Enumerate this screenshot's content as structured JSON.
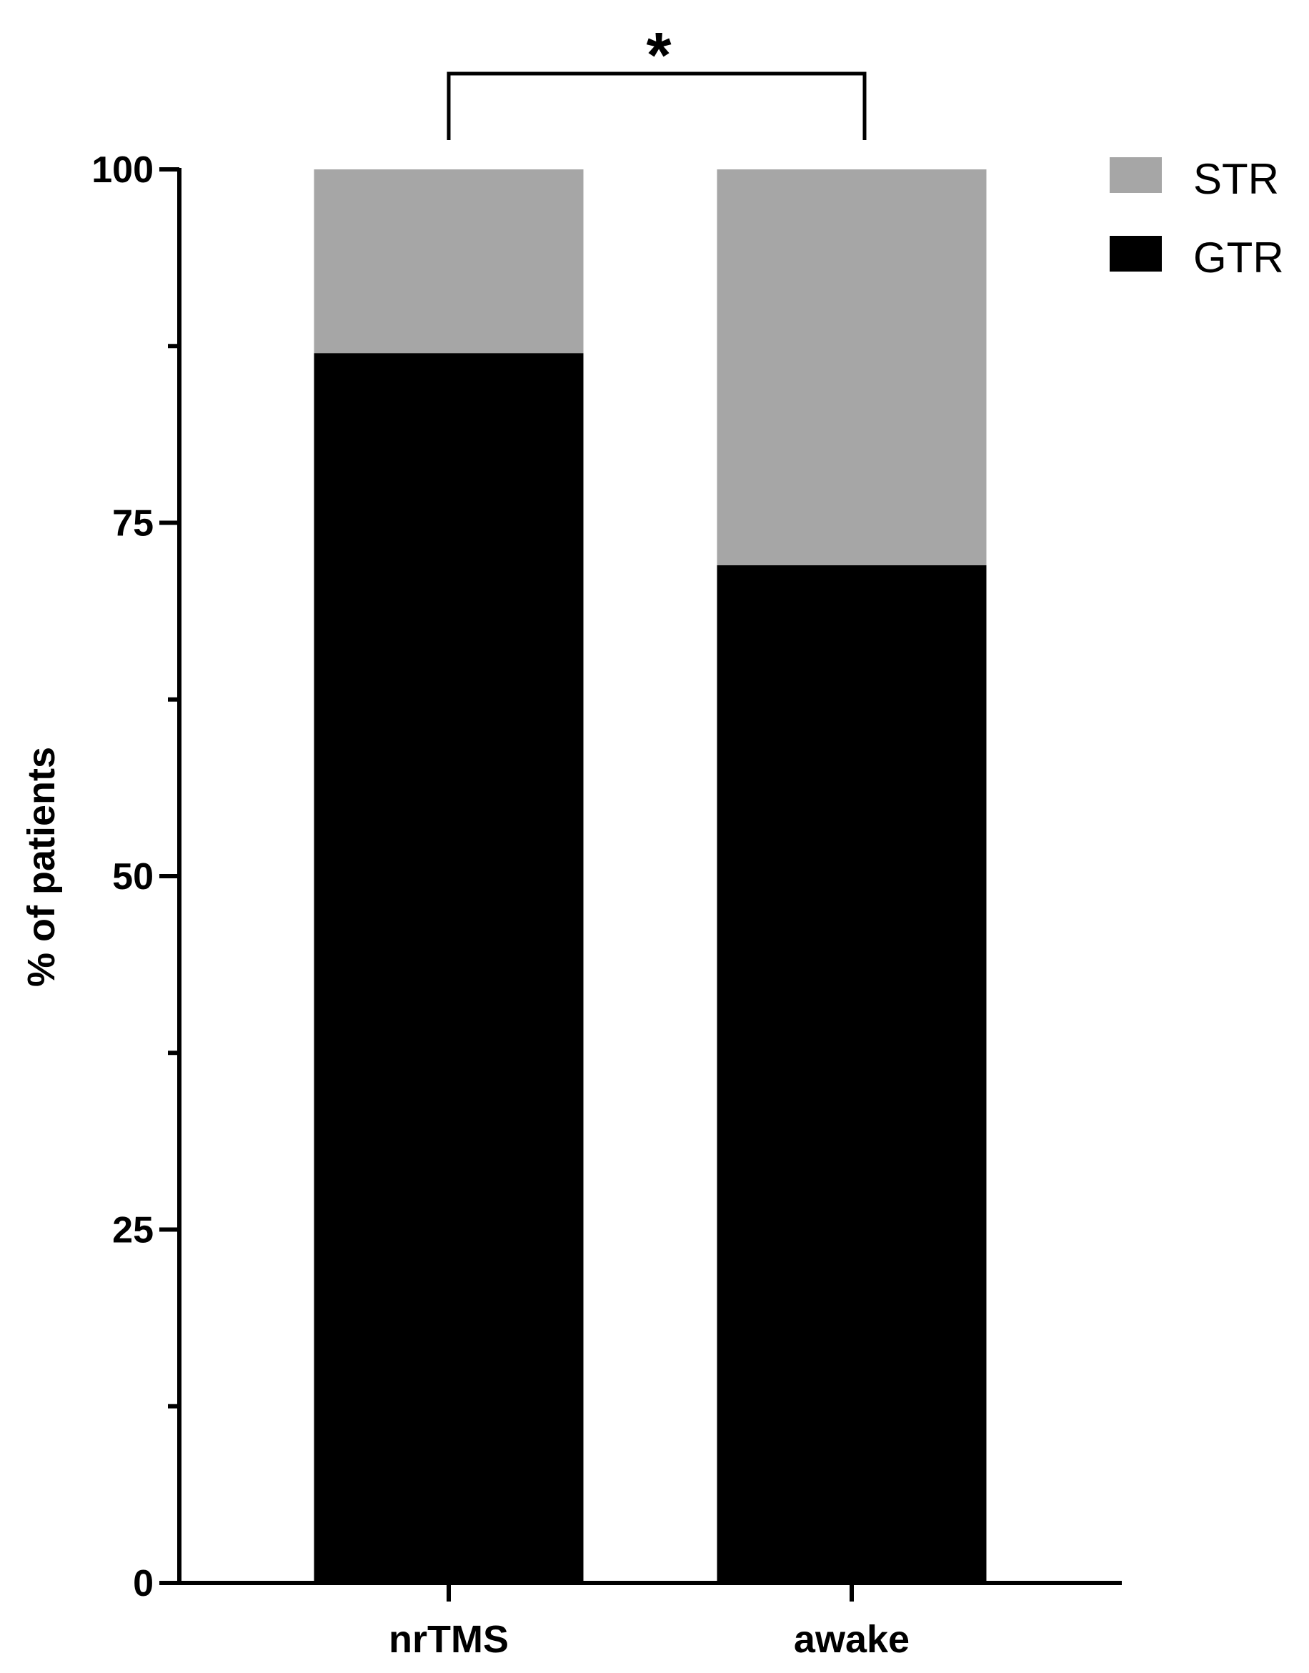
{
  "chart_data": {
    "type": "bar",
    "stacked": true,
    "categories": [
      "nrTMS",
      "awake"
    ],
    "series": [
      {
        "name": "GTR",
        "values": [
          87,
          72
        ],
        "color": "#000000"
      },
      {
        "name": "STR",
        "values": [
          13,
          28
        ],
        "color": "#a6a6a6"
      }
    ],
    "title": "",
    "xlabel": "",
    "ylabel": "% of patients",
    "ylim": [
      0,
      100
    ],
    "yticks_major": [
      0,
      25,
      50,
      75,
      100
    ],
    "yticks_minor": [
      12.5,
      37.5,
      62.5,
      87.5
    ],
    "legend": {
      "placement": "top-right",
      "order": [
        "STR",
        "GTR"
      ]
    },
    "grid": false,
    "annotations": [
      {
        "type": "significance-bracket",
        "between": [
          "nrTMS",
          "awake"
        ],
        "label": "*"
      }
    ]
  }
}
